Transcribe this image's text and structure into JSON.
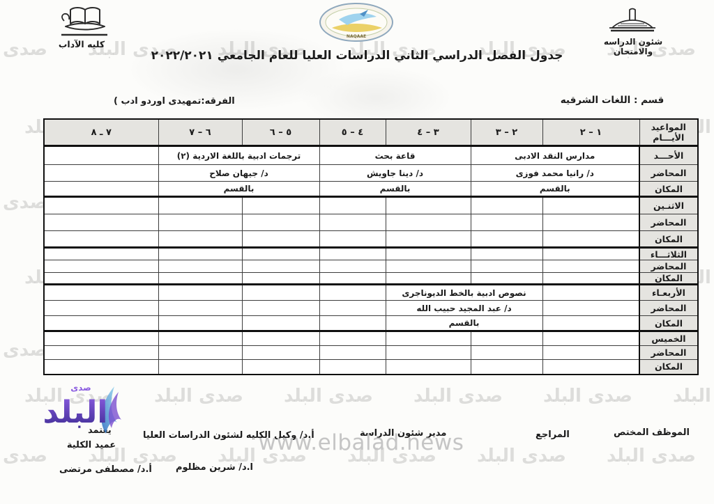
{
  "header": {
    "title": "جدول  الفصل الدراسي الثاني الدراسات العليا  للعام الجامعي ٢٠٢٢/٢٠٢١",
    "left_logo_caption": "كليه الآداب",
    "right_logo_caption": "شئون الدراسه والامتحان",
    "seal_caption": "NAQAAE"
  },
  "meta": {
    "department": "قسم : اللغات الشرقيه",
    "grade": "الفرقه:تمهيدى اوردو ادب )"
  },
  "table": {
    "corner_top": "المواعيد",
    "corner_bottom": "الأيـــام",
    "slots": [
      "١ – ٢",
      "٢ – ٣",
      "٣ – ٤",
      "٤ – ٥",
      "٥ – ٦",
      "٦ – ٧",
      "٧ ـ ٨"
    ],
    "lecturer_label": "المحاضر",
    "place_label": "المكان",
    "days": [
      {
        "name": "الأحـــد",
        "rows": [
          [
            {
              "span": 2,
              "text": "مدارس النقد الادبى"
            },
            {
              "span": 2,
              "text": "قاعة بحث"
            },
            {
              "span": 2,
              "text": "ترجمات ادبية باللغة الاردية (٢)"
            },
            {
              "span": 1,
              "text": ""
            }
          ],
          [
            {
              "span": 2,
              "text": "د/ رانيا محمد فوزى"
            },
            {
              "span": 2,
              "text": "د/ دينا جاويش"
            },
            {
              "span": 2,
              "text": "د/ جيهان صلاح"
            },
            {
              "span": 1,
              "text": ""
            }
          ],
          [
            {
              "span": 2,
              "text": "بالقسم"
            },
            {
              "span": 2,
              "text": "بالقسم"
            },
            {
              "span": 2,
              "text": "بالقسم"
            },
            {
              "span": 1,
              "text": ""
            }
          ]
        ]
      },
      {
        "name": "الاثنـين",
        "rows": [
          [
            {
              "span": 1,
              "text": ""
            },
            {
              "span": 1,
              "text": ""
            },
            {
              "span": 1,
              "text": ""
            },
            {
              "span": 1,
              "text": ""
            },
            {
              "span": 1,
              "text": ""
            },
            {
              "span": 1,
              "text": ""
            },
            {
              "span": 1,
              "text": ""
            }
          ],
          [
            {
              "span": 1,
              "text": ""
            },
            {
              "span": 1,
              "text": ""
            },
            {
              "span": 1,
              "text": ""
            },
            {
              "span": 1,
              "text": ""
            },
            {
              "span": 1,
              "text": ""
            },
            {
              "span": 1,
              "text": ""
            },
            {
              "span": 1,
              "text": ""
            }
          ],
          [
            {
              "span": 1,
              "text": ""
            },
            {
              "span": 1,
              "text": ""
            },
            {
              "span": 1,
              "text": ""
            },
            {
              "span": 1,
              "text": ""
            },
            {
              "span": 1,
              "text": ""
            },
            {
              "span": 1,
              "text": ""
            },
            {
              "span": 1,
              "text": ""
            }
          ]
        ]
      },
      {
        "name": "الثلاثـــاء",
        "rows": [
          [
            {
              "span": 1,
              "text": ""
            },
            {
              "span": 1,
              "text": ""
            },
            {
              "span": 1,
              "text": ""
            },
            {
              "span": 1,
              "text": ""
            },
            {
              "span": 1,
              "text": ""
            },
            {
              "span": 1,
              "text": ""
            },
            {
              "span": 1,
              "text": ""
            }
          ],
          [
            {
              "span": 1,
              "text": ""
            },
            {
              "span": 1,
              "text": ""
            },
            {
              "span": 1,
              "text": ""
            },
            {
              "span": 1,
              "text": ""
            },
            {
              "span": 1,
              "text": ""
            },
            {
              "span": 1,
              "text": ""
            },
            {
              "span": 1,
              "text": ""
            }
          ],
          [
            {
              "span": 1,
              "text": ""
            },
            {
              "span": 1,
              "text": ""
            },
            {
              "span": 1,
              "text": ""
            },
            {
              "span": 1,
              "text": ""
            },
            {
              "span": 1,
              "text": ""
            },
            {
              "span": 1,
              "text": ""
            },
            {
              "span": 1,
              "text": ""
            }
          ]
        ]
      },
      {
        "name": "الأربعـاء",
        "rows": [
          [
            {
              "span": 1,
              "text": ""
            },
            {
              "span": 2,
              "text": "نصوص ادبية بالخط الديوناجرى"
            },
            {
              "span": 1,
              "text": ""
            },
            {
              "span": 1,
              "text": ""
            },
            {
              "span": 1,
              "text": ""
            },
            {
              "span": 1,
              "text": ""
            }
          ],
          [
            {
              "span": 1,
              "text": ""
            },
            {
              "span": 2,
              "text": "د/ عبد المجيد حبيب الله"
            },
            {
              "span": 1,
              "text": ""
            },
            {
              "span": 1,
              "text": ""
            },
            {
              "span": 1,
              "text": ""
            },
            {
              "span": 1,
              "text": ""
            }
          ],
          [
            {
              "span": 1,
              "text": ""
            },
            {
              "span": 2,
              "text": "بالقسم"
            },
            {
              "span": 1,
              "text": ""
            },
            {
              "span": 1,
              "text": ""
            },
            {
              "span": 1,
              "text": ""
            },
            {
              "span": 1,
              "text": ""
            }
          ]
        ]
      },
      {
        "name": "الخميس",
        "rows": [
          [
            {
              "span": 1,
              "text": ""
            },
            {
              "span": 1,
              "text": ""
            },
            {
              "span": 1,
              "text": ""
            },
            {
              "span": 1,
              "text": ""
            },
            {
              "span": 1,
              "text": ""
            },
            {
              "span": 1,
              "text": ""
            },
            {
              "span": 1,
              "text": ""
            }
          ],
          [
            {
              "span": 1,
              "text": ""
            },
            {
              "span": 1,
              "text": ""
            },
            {
              "span": 1,
              "text": ""
            },
            {
              "span": 1,
              "text": ""
            },
            {
              "span": 1,
              "text": ""
            },
            {
              "span": 1,
              "text": ""
            },
            {
              "span": 1,
              "text": ""
            }
          ],
          [
            {
              "span": 1,
              "text": ""
            },
            {
              "span": 1,
              "text": ""
            },
            {
              "span": 1,
              "text": ""
            },
            {
              "span": 1,
              "text": ""
            },
            {
              "span": 1,
              "text": ""
            },
            {
              "span": 1,
              "text": ""
            },
            {
              "span": 1,
              "text": ""
            }
          ]
        ]
      }
    ]
  },
  "footer": {
    "officer": "الموظف المختص",
    "reviewer": "المراجع",
    "study_director": "مدير شئون الدراسة",
    "vice_dean": "أ.د/ وكيل الكليه لشئون الدراسات العليا",
    "approve": "يعتمد",
    "dean": "عميد الكلية",
    "study_director_name": "ا.د/ شرين مظلوم",
    "dean_name": "أ.د/ مصطفى مرتضى"
  },
  "watermark": {
    "text": "صدى البلد",
    "site": "www.elbalad.news",
    "logo_main": "البلد",
    "logo_small": "صدى"
  }
}
